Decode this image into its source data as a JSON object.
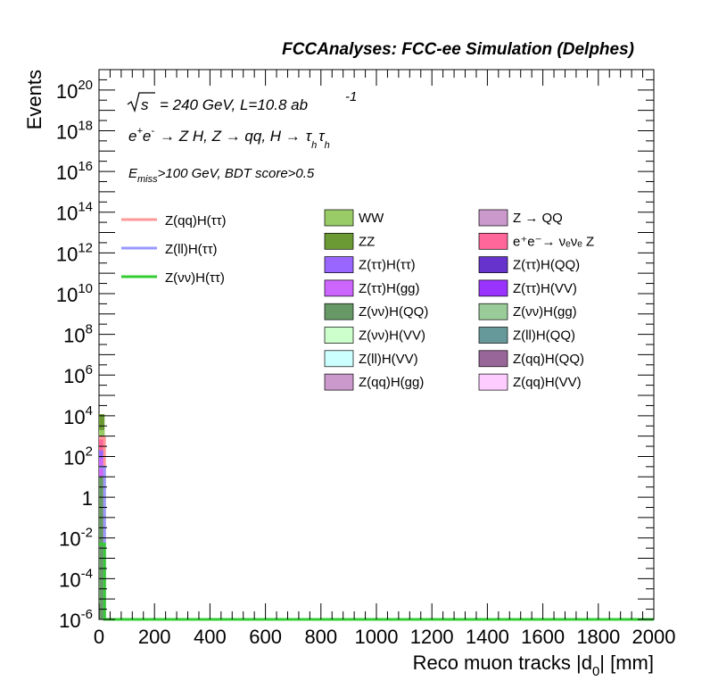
{
  "header": "FCCAnalyses: FCC-ee Simulation (Delphes)",
  "info": {
    "line1_sqrt": "√s",
    "line1_rest": "= 240 GeV, L=10.8 ab",
    "line1_sup": "-1",
    "line2": {
      "e1": "e",
      "sup1": "+",
      "e2": "e",
      "sup2": "-",
      "rest1": "→ Z H, Z  → qq, H  →",
      "tau1": "τ",
      "sub1": "h",
      "tau2": "τ",
      "sub2": "h"
    },
    "line3": {
      "main": "E",
      "sub": "miss",
      "rest": ">100 GeV, BDT score>0.5"
    }
  },
  "chart_data": {
    "type": "bar",
    "xlabel": "Reco muon tracks |d",
    "xlabel_sub": "0",
    "xlabel_tail": "| [mm]",
    "ylabel": "Events",
    "xlim": [
      0,
      2000
    ],
    "ylim": [
      1e-06,
      1e+21
    ],
    "yscale": "log",
    "x_ticks": [
      "0",
      "200",
      "400",
      "600",
      "800",
      "1000",
      "1200",
      "1400",
      "1600",
      "1800",
      "2000"
    ],
    "y_ticks": [
      {
        "base": "10",
        "exp": "20",
        "value": 1e+20
      },
      {
        "base": "10",
        "exp": "18",
        "value": 1e+18
      },
      {
        "base": "10",
        "exp": "16",
        "value": 1e+16
      },
      {
        "base": "10",
        "exp": "14",
        "value": 100000000000000.0
      },
      {
        "base": "10",
        "exp": "12",
        "value": 1000000000000.0
      },
      {
        "base": "10",
        "exp": "10",
        "value": 10000000000.0
      },
      {
        "base": "10",
        "exp": "8",
        "value": 100000000.0
      },
      {
        "base": "10",
        "exp": "6",
        "value": 1000000.0
      },
      {
        "base": "10",
        "exp": "4",
        "value": 10000.0
      },
      {
        "base": "10",
        "exp": "2",
        "value": 100.0
      },
      {
        "base": "1",
        "exp": "",
        "value": 1
      },
      {
        "base": "10",
        "exp": "-2",
        "value": 0.01
      },
      {
        "base": "10",
        "exp": "-4",
        "value": 0.0001
      },
      {
        "base": "10",
        "exp": "-6",
        "value": 1e-06
      }
    ],
    "stack_bins": [
      {
        "x0": 0,
        "x1": 20,
        "segments": [
          {
            "color": "#6b9a34",
            "top": 12000
          },
          {
            "color": "#99cc66",
            "top": 2000
          },
          {
            "color": "#ff6699",
            "top": 1000
          },
          {
            "color": "#9966ff",
            "top": 200
          },
          {
            "color": "#cc66ff",
            "top": 80
          },
          {
            "color": "#669966",
            "top": 10
          }
        ]
      }
    ],
    "signal_bins": [
      {
        "name": "Z(qq)H(ττ)",
        "color": "#ff9999",
        "x0": 0,
        "x1": 20,
        "value": 800
      },
      {
        "name": "Z(ll)H(ττ)",
        "color": "#9999ff",
        "x0": 0,
        "x1": 20,
        "value": 30
      },
      {
        "name": "Z(νν)H(ττ)",
        "color": "#33cc33",
        "x0": 0,
        "x1": 20,
        "value": 0.005
      }
    ]
  },
  "legend_signals": [
    {
      "label": "Z(qq)H(ττ)",
      "color": "#ff9999"
    },
    {
      "label": "Z(ll)H(ττ)",
      "color": "#9999ff"
    },
    {
      "label": "Z(νν)H(ττ)",
      "color": "#33cc33"
    }
  ],
  "legend_backgrounds_col1": [
    {
      "label": "WW",
      "color": "#99cc66"
    },
    {
      "label": "ZZ",
      "color": "#6b9a34"
    },
    {
      "label": "Z(ττ)H(ττ)",
      "color": "#9966ff"
    },
    {
      "label": "Z(ττ)H(gg)",
      "color": "#cc66ff"
    },
    {
      "label": "Z(νν)H(QQ)",
      "color": "#669966"
    },
    {
      "label": "Z(νν)H(VV)",
      "color": "#ccffcc"
    },
    {
      "label": "Z(ll)H(VV)",
      "color": "#ccffff"
    },
    {
      "label": "Z(qq)H(gg)",
      "color": "#cc99cc"
    }
  ],
  "legend_backgrounds_col2": [
    {
      "label": "Z → QQ",
      "color": "#cc99cc"
    },
    {
      "label": "e⁺e⁻→ νₑνₑ Z",
      "color": "#ff6699"
    },
    {
      "label": "Z(ττ)H(QQ)",
      "color": "#6633cc"
    },
    {
      "label": "Z(ττ)H(VV)",
      "color": "#9933ff"
    },
    {
      "label": "Z(νν)H(gg)",
      "color": "#99cc99"
    },
    {
      "label": "Z(ll)H(QQ)",
      "color": "#669999"
    },
    {
      "label": "Z(qq)H(QQ)",
      "color": "#996699"
    },
    {
      "label": "Z(qq)H(VV)",
      "color": "#ffccff"
    }
  ]
}
